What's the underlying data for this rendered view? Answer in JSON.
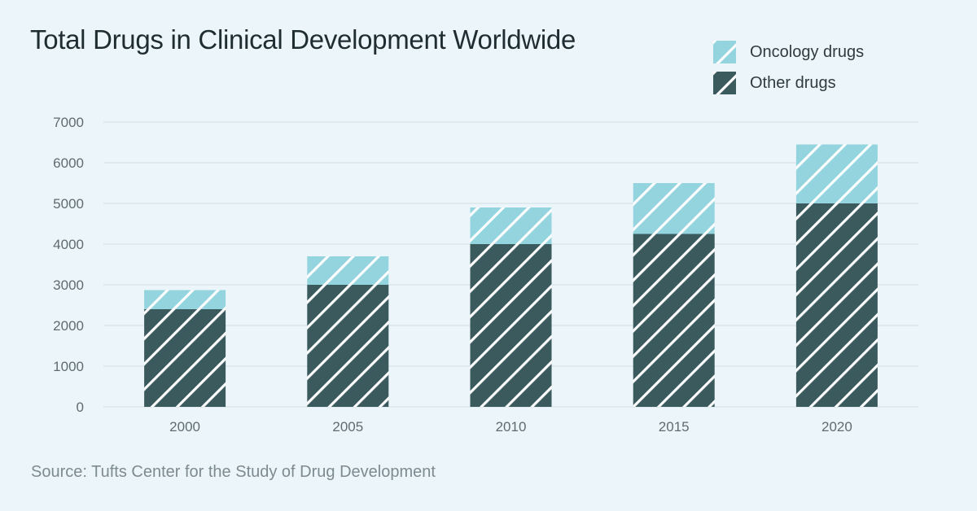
{
  "title": "Total Drugs in Clinical Development Worldwide",
  "source": "Source: Tufts Center for the Study of Drug Development",
  "colors": {
    "oncology": "#93d4de",
    "other": "#3b5a5e",
    "stripe": "#ffffff",
    "grid": "#d9e6ea"
  },
  "chart_data": {
    "type": "bar",
    "stacked": true,
    "categories": [
      "2000",
      "2005",
      "2010",
      "2015",
      "2020"
    ],
    "series": [
      {
        "name": "Other drugs",
        "values": [
          2400,
          3000,
          4000,
          4250,
          5000
        ]
      },
      {
        "name": "Oncology drugs",
        "values": [
          470,
          700,
          900,
          1250,
          1450
        ]
      }
    ],
    "ylim": [
      0,
      7000
    ],
    "yticks": [
      "0",
      "1000",
      "2000",
      "3000",
      "4000",
      "5000",
      "6000",
      "7000"
    ],
    "grid": true,
    "legend_position": "top-right"
  },
  "legend": [
    {
      "label": "Oncology drugs",
      "series": "oncology"
    },
    {
      "label": "Other drugs",
      "series": "other"
    }
  ]
}
